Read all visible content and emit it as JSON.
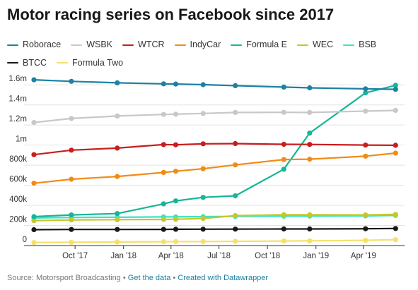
{
  "chart_data": {
    "type": "line",
    "title": "Motor racing series on Facebook since 2017",
    "xlabel": "",
    "ylabel": "",
    "ylim": [
      0,
      1700000
    ],
    "yticks": [
      {
        "v": 0,
        "label": "0"
      },
      {
        "v": 200000,
        "label": "200k"
      },
      {
        "v": 400000,
        "label": "400k"
      },
      {
        "v": 600000,
        "label": "600k"
      },
      {
        "v": 800000,
        "label": "800k"
      },
      {
        "v": 1000000,
        "label": "1m"
      },
      {
        "v": 1200000,
        "label": "1.2m"
      },
      {
        "v": 1400000,
        "label": "1.4m"
      },
      {
        "v": 1600000,
        "label": "1.6m"
      }
    ],
    "xticks": [
      {
        "x": "2017-10-01",
        "label": "Oct '17"
      },
      {
        "x": "2018-01-01",
        "label": "Jan '18"
      },
      {
        "x": "2018-04-01",
        "label": "Apr '18"
      },
      {
        "x": "2018-07-01",
        "label": "Jul '18"
      },
      {
        "x": "2018-10-01",
        "label": "Oct '18"
      },
      {
        "x": "2019-01-01",
        "label": "Jan '19"
      },
      {
        "x": "2019-04-01",
        "label": "Apr '19"
      }
    ],
    "xlim": [
      "2017-07-15",
      "2019-06-10"
    ],
    "grid": true,
    "legend_position": "top",
    "series": [
      {
        "name": "Roborace",
        "color": "#1d81a2",
        "x": [
          "2017-07-15",
          "2017-09-24",
          "2017-12-20",
          "2018-03-18",
          "2018-04-10",
          "2018-06-01",
          "2018-08-01",
          "2018-11-01",
          "2018-12-20",
          "2019-04-05",
          "2019-06-01"
        ],
        "values": [
          1650000,
          1635000,
          1620000,
          1610000,
          1608000,
          1602000,
          1592000,
          1578000,
          1570000,
          1560000,
          1555000
        ]
      },
      {
        "name": "WSBK",
        "color": "#c8c8c8",
        "x": [
          "2017-07-15",
          "2017-09-24",
          "2017-12-20",
          "2018-03-18",
          "2018-04-10",
          "2018-06-01",
          "2018-08-01",
          "2018-11-01",
          "2018-12-20",
          "2019-04-05",
          "2019-06-01"
        ],
        "values": [
          1225000,
          1265000,
          1290000,
          1305000,
          1308000,
          1315000,
          1325000,
          1326000,
          1325000,
          1338000,
          1345000
        ]
      },
      {
        "name": "WTCR",
        "color": "#c71e1d",
        "x": [
          "2017-07-15",
          "2017-09-24",
          "2017-12-20",
          "2018-03-18",
          "2018-04-10",
          "2018-06-01",
          "2018-08-01",
          "2018-11-01",
          "2018-12-20",
          "2019-04-05",
          "2019-06-01"
        ],
        "values": [
          905000,
          950000,
          970000,
          1005000,
          1003000,
          1013000,
          1015000,
          1008000,
          1007000,
          1000000,
          998000
        ]
      },
      {
        "name": "IndyCar",
        "color": "#f28b16",
        "x": [
          "2017-07-15",
          "2017-09-24",
          "2017-12-20",
          "2018-03-18",
          "2018-04-10",
          "2018-06-01",
          "2018-08-01",
          "2018-11-01",
          "2018-12-20",
          "2019-04-05",
          "2019-06-01"
        ],
        "values": [
          620000,
          660000,
          688000,
          728000,
          740000,
          765000,
          803000,
          856000,
          860000,
          890000,
          920000
        ]
      },
      {
        "name": "Formula E",
        "color": "#15b598",
        "x": [
          "2017-07-15",
          "2017-09-24",
          "2017-12-20",
          "2018-03-18",
          "2018-04-10",
          "2018-06-01",
          "2018-08-01",
          "2018-11-01",
          "2018-12-20",
          "2019-04-05",
          "2019-06-01"
        ],
        "values": [
          288000,
          305000,
          318000,
          415000,
          445000,
          480000,
          495000,
          760000,
          1120000,
          1520000,
          1595000
        ]
      },
      {
        "name": "WEC",
        "color": "#c5c72b",
        "x": [
          "2017-07-15",
          "2017-09-24",
          "2017-12-20",
          "2018-03-18",
          "2018-04-10",
          "2018-06-01",
          "2018-08-01",
          "2018-11-01",
          "2018-12-20",
          "2019-04-05",
          "2019-06-01"
        ],
        "values": [
          248000,
          255000,
          258000,
          260000,
          262000,
          270000,
          298000,
          306000,
          306000,
          305000,
          310000
        ]
      },
      {
        "name": "BSB",
        "color": "#3fe3c0",
        "x": [
          "2017-07-15",
          "2017-09-24",
          "2017-12-20",
          "2018-03-18",
          "2018-04-10",
          "2018-06-01",
          "2018-08-01",
          "2018-11-01",
          "2018-12-20",
          "2019-04-05",
          "2019-06-01"
        ],
        "values": [
          275000,
          280000,
          282000,
          285000,
          286000,
          288000,
          290000,
          292000,
          293000,
          295000,
          300000
        ]
      },
      {
        "name": "BTCC",
        "color": "#181818",
        "x": [
          "2017-07-15",
          "2017-09-24",
          "2017-12-20",
          "2018-03-18",
          "2018-04-10",
          "2018-06-01",
          "2018-08-01",
          "2018-11-01",
          "2018-12-20",
          "2019-04-05",
          "2019-06-01"
        ],
        "values": [
          158000,
          160000,
          160000,
          161000,
          162000,
          163000,
          164000,
          165000,
          165000,
          167000,
          170000
        ]
      },
      {
        "name": "Formula Two",
        "color": "#f5e06a",
        "x": [
          "2017-07-15",
          "2017-09-24",
          "2017-12-20",
          "2018-03-18",
          "2018-04-10",
          "2018-06-01",
          "2018-08-01",
          "2018-11-01",
          "2018-12-20",
          "2019-04-05",
          "2019-06-01"
        ],
        "values": [
          30000,
          33000,
          36000,
          38000,
          39000,
          40000,
          42000,
          45000,
          47000,
          52000,
          58000
        ]
      }
    ]
  },
  "footer": {
    "source": "Source: Motorsport Broadcasting",
    "separator": " • ",
    "get_data": "Get the data",
    "created_with": "Created with Datawrapper"
  }
}
